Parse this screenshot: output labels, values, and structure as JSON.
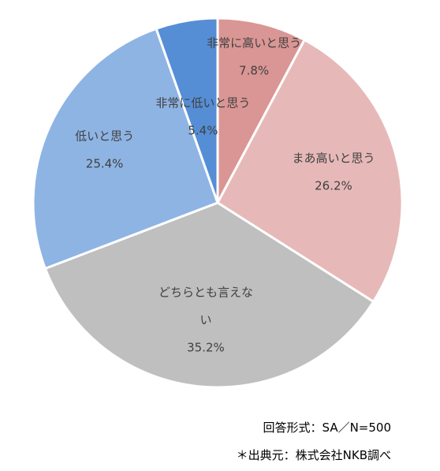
{
  "chart_data": {
    "type": "pie",
    "start_angle": "12 o'clock",
    "direction": "clockwise",
    "slices": [
      {
        "label": "非常に高いと思う",
        "label_lines": [
          "非常に高いと思う"
        ],
        "value": 7.8,
        "display": "7.8%",
        "color": "#da9694"
      },
      {
        "label": "まあ高いと思う",
        "label_lines": [
          "まあ高いと思う"
        ],
        "value": 26.2,
        "display": "26.2%",
        "color": "#e6b9b8"
      },
      {
        "label": "どちらとも言えない",
        "label_lines": [
          "どちらとも言えな",
          "い"
        ],
        "value": 35.2,
        "display": "35.2%",
        "color": "#bfbfbf"
      },
      {
        "label": "低いと思う",
        "label_lines": [
          "低いと思う"
        ],
        "value": 25.4,
        "display": "25.4%",
        "color": "#8eb4e3"
      },
      {
        "label": "非常に低いと思う",
        "label_lines": [
          "非常に低いと思う"
        ],
        "value": 5.4,
        "display": "5.4%",
        "color": "#558ed5"
      }
    ]
  },
  "footnotes": {
    "method": "回答形式：SA／N=500",
    "source": "＊出典元：株式会社NKB調べ"
  }
}
